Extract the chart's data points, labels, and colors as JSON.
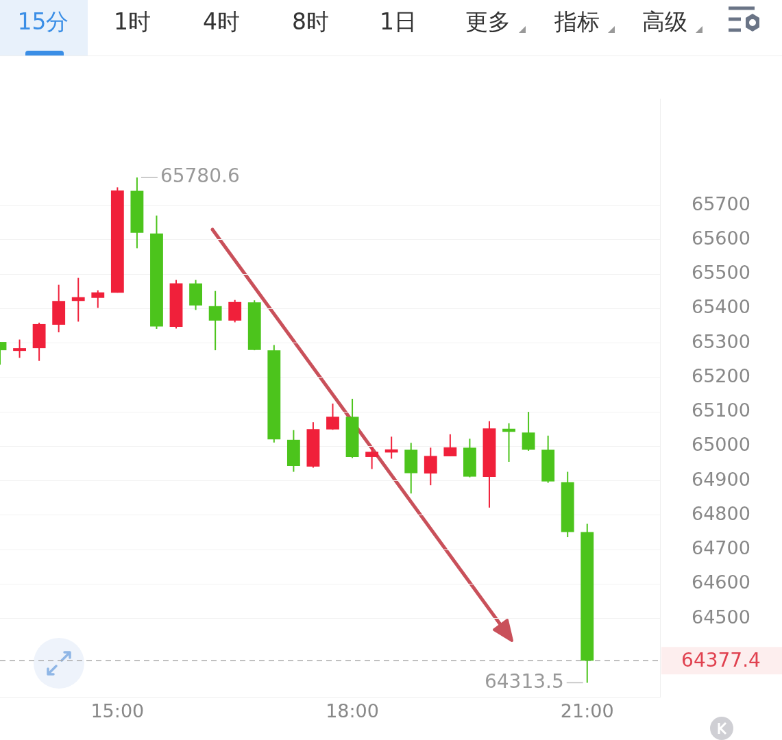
{
  "chart_data": {
    "type": "candlestick",
    "x": [
      13.5,
      13.75,
      14,
      14.25,
      14.5,
      14.75,
      15,
      15.25,
      15.5,
      15.75,
      16,
      16.25,
      16.5,
      16.75,
      17,
      17.25,
      17.5,
      17.75,
      18,
      18.25,
      18.5,
      18.75,
      19,
      19.25,
      19.5,
      19.75,
      20,
      20.25,
      20.5,
      20.75,
      21
    ],
    "ohlc": [
      [
        65303,
        65303,
        65237,
        65279
      ],
      [
        65277,
        65310,
        65257,
        65285
      ],
      [
        65285,
        65359,
        65248,
        65355
      ],
      [
        65353,
        65469,
        65331,
        65422
      ],
      [
        65422,
        65489,
        65362,
        65433
      ],
      [
        65431,
        65453,
        65402,
        65447
      ],
      [
        65446,
        65752,
        65446,
        65743
      ],
      [
        65742,
        65780.6,
        65575,
        65620
      ],
      [
        65618,
        65670,
        65341,
        65348
      ],
      [
        65347,
        65483,
        65342,
        65473
      ],
      [
        65473,
        65483,
        65396,
        65409
      ],
      [
        65407,
        65451,
        65279,
        65365
      ],
      [
        65365,
        65425,
        65360,
        65419
      ],
      [
        65418,
        65424,
        65279,
        65280
      ],
      [
        65279,
        65294,
        65011,
        65020
      ],
      [
        65019,
        65047,
        64926,
        64943
      ],
      [
        64941,
        65070,
        64938,
        65050
      ],
      [
        65049,
        65124,
        65048,
        65086
      ],
      [
        65086,
        65138,
        64966,
        64969
      ],
      [
        64969,
        64996,
        64934,
        64984
      ],
      [
        64982,
        65028,
        64964,
        64991
      ],
      [
        64990,
        65010,
        64863,
        64922
      ],
      [
        64921,
        64996,
        64887,
        64972
      ],
      [
        64971,
        65035,
        64971,
        64997
      ],
      [
        64996,
        65022,
        64910,
        64912
      ],
      [
        64911,
        65073,
        64822,
        65052
      ],
      [
        65051,
        65067,
        64955,
        65042
      ],
      [
        65040,
        65100,
        64987,
        64990
      ],
      [
        64990,
        65031,
        64894,
        64898
      ],
      [
        64896,
        64926,
        64736,
        64751
      ],
      [
        64751,
        64775,
        64313.5,
        64377.4
      ]
    ],
    "colors": [
      "#4cc41c",
      "#f0203a",
      "#f0203a",
      "#f0203a",
      "#f0203a",
      "#f0203a",
      "#f0203a",
      "#4cc41c",
      "#4cc41c",
      "#f0203a",
      "#4cc41c",
      "#4cc41c",
      "#f0203a",
      "#4cc41c",
      "#4cc41c",
      "#4cc41c",
      "#f0203a",
      "#f0203a",
      "#4cc41c",
      "#f0203a",
      "#f0203a",
      "#4cc41c",
      "#f0203a",
      "#f0203a",
      "#4cc41c",
      "#f0203a",
      "#4cc41c",
      "#4cc41c",
      "#4cc41c",
      "#4cc41c",
      "#4cc41c"
    ],
    "xlim": [
      13.5,
      21.93
    ],
    "xticks": [
      {
        "value": 15,
        "label": "15:00"
      },
      {
        "value": 18,
        "label": "18:00"
      },
      {
        "value": 21,
        "label": "21:00"
      }
    ],
    "ylim": [
      64271,
      66009
    ],
    "yticks": [
      64500,
      64600,
      64700,
      64800,
      64900,
      65000,
      65100,
      65200,
      65300,
      65400,
      65500,
      65600,
      65700
    ],
    "grid": "y",
    "legend": false,
    "ref_lines": [
      {
        "axis": "y",
        "value": 64377.4,
        "label": "64377.4",
        "color": "#aaaaaa",
        "line_style": "dashed"
      }
    ],
    "annotations": [
      "15分",
      "1时",
      "4时",
      "8时",
      "1日",
      "更多",
      "指标",
      "高级",
      {
        "text": "65780.6",
        "x": 15.25,
        "y": 65780.6
      },
      {
        "text": "64313.5",
        "x": 21,
        "y": 64313.5
      }
    ]
  }
}
